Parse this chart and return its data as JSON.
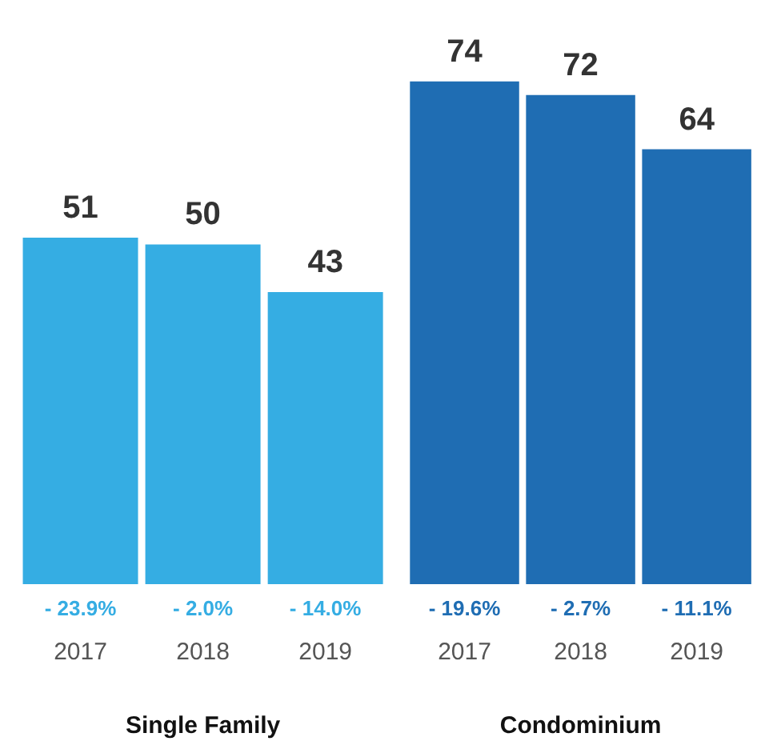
{
  "chart_data": [
    {
      "type": "bar",
      "xlabel": "Single Family",
      "categories": [
        "2017",
        "2018",
        "2019"
      ],
      "values": [
        51,
        50,
        43
      ],
      "color": "#35ade3",
      "data_labels": true,
      "annotations": [
        "- 23.9%",
        "- 2.0%",
        "- 14.0%"
      ]
    },
    {
      "type": "bar",
      "xlabel": "Condominium",
      "categories": [
        "2017",
        "2018",
        "2019"
      ],
      "values": [
        74,
        72,
        64
      ],
      "color": "#1f6db3",
      "data_labels": true,
      "annotations": [
        "- 19.6%",
        "- 2.7%",
        "- 11.1%"
      ]
    }
  ]
}
